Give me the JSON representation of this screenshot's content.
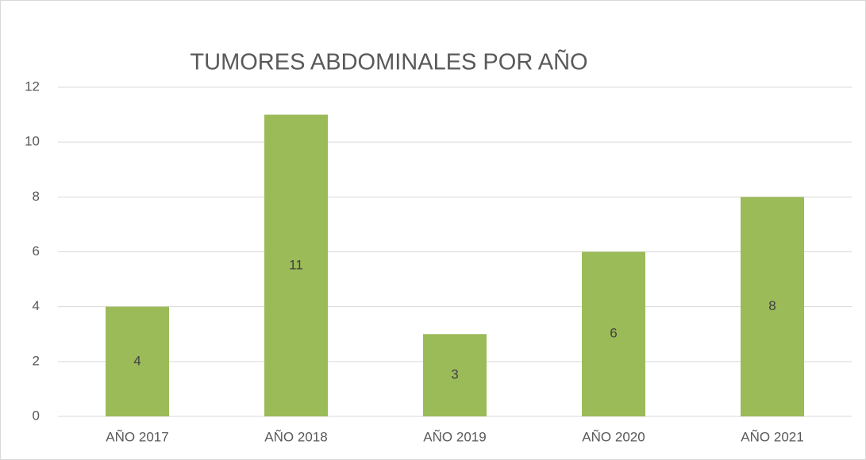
{
  "chart_data": {
    "type": "bar",
    "title": "TUMORES ABDOMINALES POR AÑO",
    "categories": [
      "AÑO 2017",
      "AÑO 2018",
      "AÑO 2019",
      "AÑO 2020",
      "AÑO 2021"
    ],
    "values": [
      4,
      11,
      3,
      6,
      8
    ],
    "color": "#9bbb59",
    "ylim": [
      0,
      12
    ],
    "yticks": [
      0,
      2,
      4,
      6,
      8,
      10,
      12
    ],
    "grid": true,
    "data_labels": true
  }
}
